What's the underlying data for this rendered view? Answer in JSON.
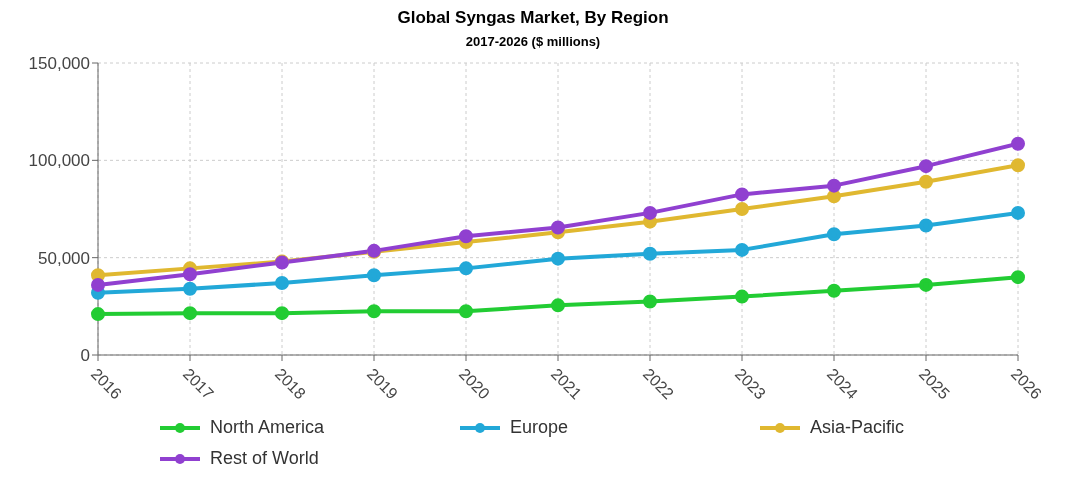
{
  "chart_data": {
    "type": "line",
    "title": "Global Syngas Market, By Region",
    "subtitle": "2017-2026 ($ millions)",
    "categories": [
      "2016",
      "2017",
      "2018",
      "2019",
      "2020",
      "2021",
      "2022",
      "2023",
      "2024",
      "2025",
      "2026"
    ],
    "series": [
      {
        "name": "North America",
        "color": "#22cc33",
        "values": [
          21000,
          21500,
          21500,
          22500,
          22500,
          25500,
          27500,
          30000,
          33000,
          36000,
          40000
        ]
      },
      {
        "name": "Europe",
        "color": "#22a8d8",
        "values": [
          32000,
          34000,
          37000,
          41000,
          44500,
          49500,
          52000,
          54000,
          62000,
          66500,
          73000
        ]
      },
      {
        "name": "Asia-Pacific",
        "color": "#e0b830",
        "values": [
          41000,
          44500,
          48000,
          53000,
          58000,
          63000,
          68500,
          75000,
          81500,
          89000,
          97500
        ]
      },
      {
        "name": "Rest of World",
        "color": "#9040d0",
        "values": [
          36000,
          41500,
          47500,
          53500,
          61000,
          65500,
          73000,
          82500,
          87000,
          97000,
          108500
        ]
      }
    ],
    "ylim": [
      0,
      150000
    ],
    "yticks": [
      0,
      {
        "value": 50000,
        "label": "50,000"
      },
      {
        "value": 100000,
        "label": "100,000"
      },
      {
        "value": 150000,
        "label": "150,000"
      }
    ],
    "grid": true,
    "legend": "bottom",
    "marker": "circle",
    "line_style": "solid"
  }
}
